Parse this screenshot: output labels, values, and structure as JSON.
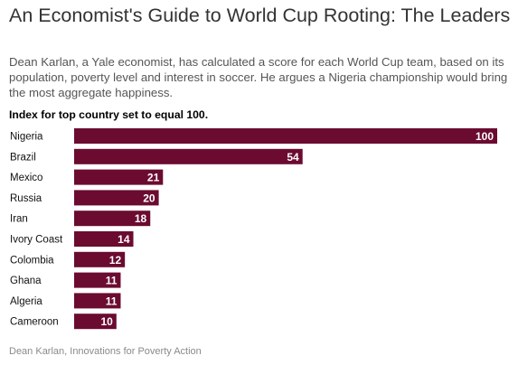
{
  "header": {
    "title": "An Economist's Guide to World Cup Rooting: The Leaders",
    "subtitle": "Dean Karlan, a Yale economist, has calculated a score for each World Cup team, based on its population, poverty level and interest in soccer. He argues a Nigeria championship would bring the most aggregate happiness.",
    "note": "Index for top country set to equal 100."
  },
  "footer": {
    "source": "Dean Karlan, Innovations for Poverty Action"
  },
  "colors": {
    "bar": "#6b0b30",
    "label_text": "#ffffff",
    "category_text": "#111111"
  },
  "chart_data": {
    "type": "bar",
    "orientation": "horizontal",
    "categories": [
      "Nigeria",
      "Brazil",
      "Mexico",
      "Russia",
      "Iran",
      "Ivory Coast",
      "Colombia",
      "Ghana",
      "Algeria",
      "Cameroon"
    ],
    "values": [
      100,
      54,
      21,
      20,
      18,
      14,
      12,
      11,
      11,
      10
    ],
    "data_labels": [
      "100",
      "54",
      "21",
      "20",
      "18",
      "14",
      "12",
      "11",
      "11",
      "10"
    ],
    "xlim": [
      0,
      100
    ],
    "grid": false,
    "legend": "none"
  }
}
